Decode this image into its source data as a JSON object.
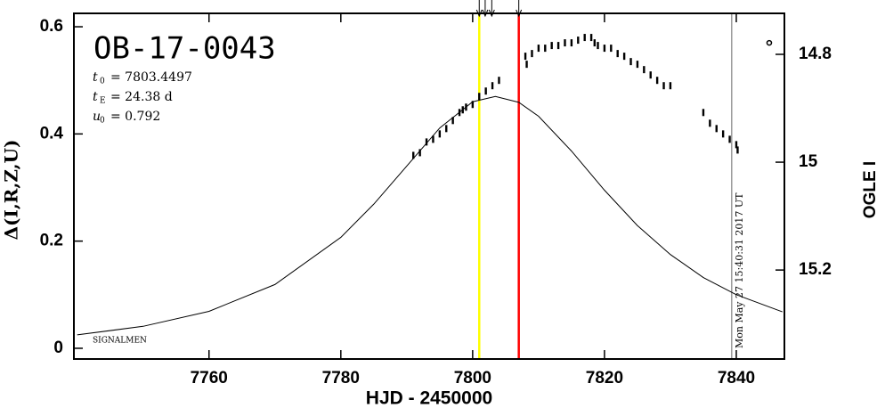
{
  "chart_data": {
    "type": "lightcurve",
    "title": "OB-17-0043",
    "params": [
      {
        "symbol": "t",
        "sub": "0",
        "text": "= 7803.4497"
      },
      {
        "symbol": "t",
        "sub": "E",
        "text": "= 24.38  d"
      },
      {
        "symbol": "u",
        "sub": "0",
        "text": "= 0.792"
      }
    ],
    "corner_label": "SIGNALMEN",
    "xlabel": "HJD - 2450000",
    "ylabel": "Δ(I,R,Z,U)",
    "y2label": "OGLE I",
    "xlim": [
      7739.5,
      7847.3
    ],
    "xticks": [
      7760,
      7780,
      7800,
      7820,
      7840
    ],
    "ylim": [
      -0.02,
      0.625
    ],
    "yticks": [
      0,
      0.2,
      0.4,
      0.6
    ],
    "y2lim": [
      15.365,
      14.724
    ],
    "y2ticks": [
      14.8,
      15,
      15.2
    ],
    "model": {
      "color": "#000000",
      "x": [
        7740,
        7750,
        7760,
        7770,
        7780,
        7785,
        7790,
        7795,
        7800,
        7803.45,
        7807,
        7810,
        7815,
        7820,
        7825,
        7830,
        7835,
        7840,
        7847
      ],
      "values": [
        0.025,
        0.041,
        0.069,
        0.119,
        0.207,
        0.269,
        0.34,
        0.411,
        0.46,
        0.47,
        0.459,
        0.433,
        0.368,
        0.295,
        0.229,
        0.175,
        0.132,
        0.1,
        0.068
      ]
    },
    "points": {
      "color": "#000000",
      "x": [
        7791,
        7792,
        7793,
        7794,
        7795,
        7796,
        7797,
        7798,
        7798.5,
        7799,
        7800,
        7801,
        7802,
        7803,
        7804,
        7808,
        7808.2,
        7809,
        7810,
        7811,
        7812,
        7813,
        7814,
        7815,
        7816,
        7817,
        7818,
        7818.5,
        7819,
        7820,
        7821,
        7822,
        7823,
        7824,
        7825,
        7826,
        7827,
        7828,
        7829,
        7830,
        7835,
        7836,
        7837,
        7838,
        7839,
        7840,
        7840.2
      ],
      "values": [
        0.36,
        0.365,
        0.385,
        0.39,
        0.4,
        0.41,
        0.425,
        0.44,
        0.445,
        0.45,
        0.455,
        0.47,
        0.48,
        0.49,
        0.5,
        0.545,
        0.53,
        0.55,
        0.56,
        0.56,
        0.565,
        0.565,
        0.57,
        0.57,
        0.575,
        0.58,
        0.58,
        0.57,
        0.565,
        0.56,
        0.56,
        0.55,
        0.545,
        0.535,
        0.53,
        0.52,
        0.51,
        0.5,
        0.49,
        0.49,
        0.44,
        0.42,
        0.41,
        0.4,
        0.39,
        0.38,
        0.37
      ]
    },
    "outlier": {
      "x": 7845,
      "value": 0.57
    },
    "markers": [
      {
        "x": 7801,
        "color": "#ffff00"
      },
      {
        "x": 7807,
        "color": "#ff0000"
      },
      {
        "x": 7839.3,
        "color": "#999999",
        "label": "Mon May 27 15:40:31 2017 UT"
      }
    ],
    "arrows": [
      7801,
      7801.9,
      7802.9,
      7807
    ]
  }
}
